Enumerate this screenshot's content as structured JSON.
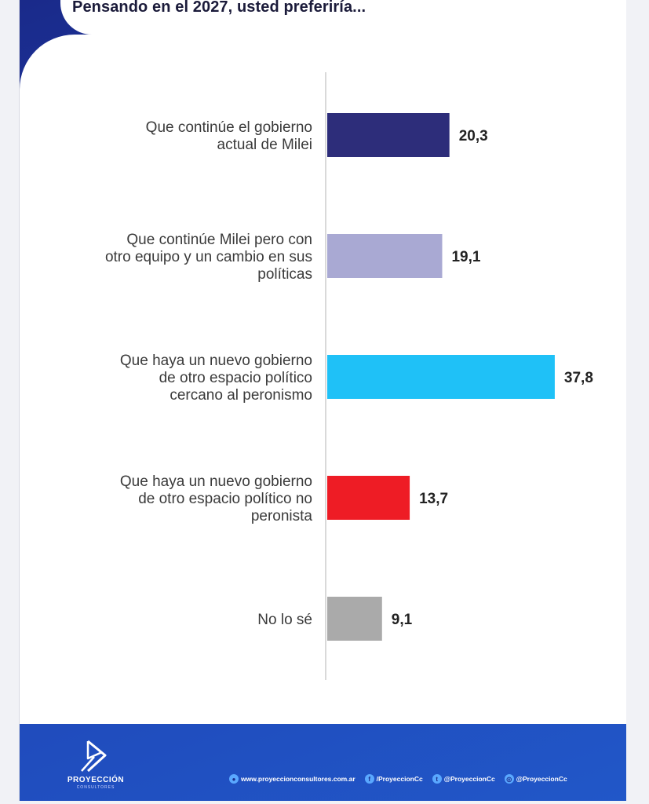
{
  "title": "Pensando en el 2027, usted preferiría...",
  "chart_data": {
    "type": "bar",
    "orientation": "horizontal",
    "categories": [
      [
        "Que continúe el gobierno",
        "actual de Milei"
      ],
      [
        "Que continúe Milei pero con",
        "otro equipo y un cambio en sus",
        "políticas"
      ],
      [
        "Que haya un nuevo gobierno",
        "de otro espacio político",
        "cercano al peronismo"
      ],
      [
        "Que haya un nuevo gobierno",
        "de otro espacio político no",
        "peronista"
      ],
      [
        "No lo sé"
      ]
    ],
    "values": [
      20.3,
      19.1,
      37.8,
      13.7,
      9.1
    ],
    "value_labels": [
      "20,3",
      "19,1",
      "37,8",
      "13,7",
      "9,1"
    ],
    "colors": [
      "#2d2d7a",
      "#a9a9d3",
      "#1fc1f7",
      "#ee1c25",
      "#aaaaaa"
    ],
    "xlim": [
      0,
      50
    ],
    "grid": false,
    "legend": "none"
  },
  "brand": {
    "name": "PROYECCIÓN",
    "sub": "CONSULTORES"
  },
  "socials": [
    {
      "icon": "globe-icon",
      "glyph": "●",
      "text": "www.proyeccionconsultores.com.ar"
    },
    {
      "icon": "facebook-icon",
      "glyph": "f",
      "text": "/ProyeccionCc"
    },
    {
      "icon": "twitter-icon",
      "glyph": "t",
      "text": "@ProyeccionCc"
    },
    {
      "icon": "instagram-icon",
      "glyph": "◎",
      "text": "@ProyeccionCc"
    }
  ]
}
